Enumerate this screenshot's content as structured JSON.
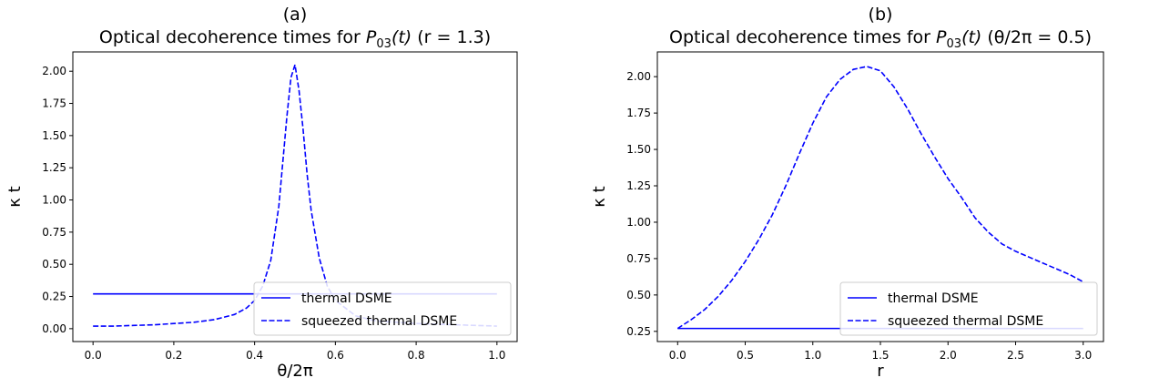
{
  "chart_data": [
    {
      "type": "line",
      "panel_label": "(a)",
      "title_prefix": "Optical decoherence times for ",
      "title_math_base": "P",
      "title_math_sub": "03",
      "title_math_arg": "(t)",
      "title_suffix": "  (r = 1.3)",
      "xlabel": "θ/2π",
      "ylabel": "κ t",
      "xlim": [
        -0.05,
        1.05
      ],
      "ylim": [
        -0.1,
        2.15
      ],
      "xticks": [
        0.0,
        0.2,
        0.4,
        0.6,
        0.8,
        1.0
      ],
      "xtick_labels": [
        "0.0",
        "0.2",
        "0.4",
        "0.6",
        "0.8",
        "1.0"
      ],
      "yticks": [
        0.0,
        0.25,
        0.5,
        0.75,
        1.0,
        1.25,
        1.5,
        1.75,
        2.0
      ],
      "ytick_labels": [
        "0.00",
        "0.25",
        "0.50",
        "0.75",
        "1.00",
        "1.25",
        "1.50",
        "1.75",
        "2.00"
      ],
      "grid": false,
      "legend_position": "lower-right",
      "colors": {
        "series": "#0000ff"
      },
      "series": [
        {
          "name": "thermal DSME",
          "style": "solid",
          "x": [
            0.0,
            1.0
          ],
          "y": [
            0.27,
            0.27
          ]
        },
        {
          "name": "squeezed thermal DSME",
          "style": "dashed",
          "x": [
            0.0,
            0.05,
            0.1,
            0.15,
            0.2,
            0.25,
            0.3,
            0.35,
            0.38,
            0.4,
            0.42,
            0.44,
            0.46,
            0.47,
            0.48,
            0.49,
            0.5,
            0.51,
            0.52,
            0.53,
            0.54,
            0.56,
            0.58,
            0.6,
            0.65,
            0.7,
            0.8,
            0.9,
            1.0
          ],
          "y": [
            0.02,
            0.02,
            0.025,
            0.03,
            0.04,
            0.05,
            0.07,
            0.11,
            0.16,
            0.22,
            0.33,
            0.53,
            0.95,
            1.3,
            1.65,
            1.95,
            2.05,
            1.85,
            1.55,
            1.2,
            0.92,
            0.55,
            0.33,
            0.22,
            0.1,
            0.06,
            0.04,
            0.03,
            0.02
          ]
        }
      ]
    },
    {
      "type": "line",
      "panel_label": "(b)",
      "title_prefix": "Optical decoherence times for ",
      "title_math_base": "P",
      "title_math_sub": "03",
      "title_math_arg": "(t)",
      "title_suffix": "  (θ/2π = 0.5)",
      "xlabel": "r",
      "ylabel": "κ t",
      "xlim": [
        -0.15,
        3.15
      ],
      "ylim": [
        0.18,
        2.17
      ],
      "xticks": [
        0.0,
        0.5,
        1.0,
        1.5,
        2.0,
        2.5,
        3.0
      ],
      "xtick_labels": [
        "0.0",
        "0.5",
        "1.0",
        "1.5",
        "2.0",
        "2.5",
        "3.0"
      ],
      "yticks": [
        0.25,
        0.5,
        0.75,
        1.0,
        1.25,
        1.5,
        1.75,
        2.0
      ],
      "ytick_labels": [
        "0.25",
        "0.50",
        "0.75",
        "1.00",
        "1.25",
        "1.50",
        "1.75",
        "2.00"
      ],
      "grid": false,
      "legend_position": "lower-right",
      "colors": {
        "series": "#0000ff"
      },
      "series": [
        {
          "name": "thermal DSME",
          "style": "solid",
          "x": [
            0.0,
            3.0
          ],
          "y": [
            0.27,
            0.27
          ]
        },
        {
          "name": "squeezed thermal DSME",
          "style": "dashed",
          "x": [
            0.0,
            0.1,
            0.2,
            0.3,
            0.4,
            0.5,
            0.6,
            0.7,
            0.8,
            0.9,
            1.0,
            1.1,
            1.2,
            1.3,
            1.4,
            1.5,
            1.6,
            1.7,
            1.8,
            1.9,
            2.0,
            2.1,
            2.2,
            2.3,
            2.4,
            2.5,
            2.6,
            2.7,
            2.8,
            2.9,
            3.0
          ],
          "y": [
            0.27,
            0.33,
            0.4,
            0.49,
            0.6,
            0.73,
            0.88,
            1.05,
            1.25,
            1.47,
            1.68,
            1.86,
            1.98,
            2.05,
            2.07,
            2.04,
            1.93,
            1.78,
            1.61,
            1.45,
            1.3,
            1.17,
            1.03,
            0.93,
            0.85,
            0.8,
            0.76,
            0.72,
            0.68,
            0.64,
            0.59
          ]
        }
      ]
    }
  ]
}
